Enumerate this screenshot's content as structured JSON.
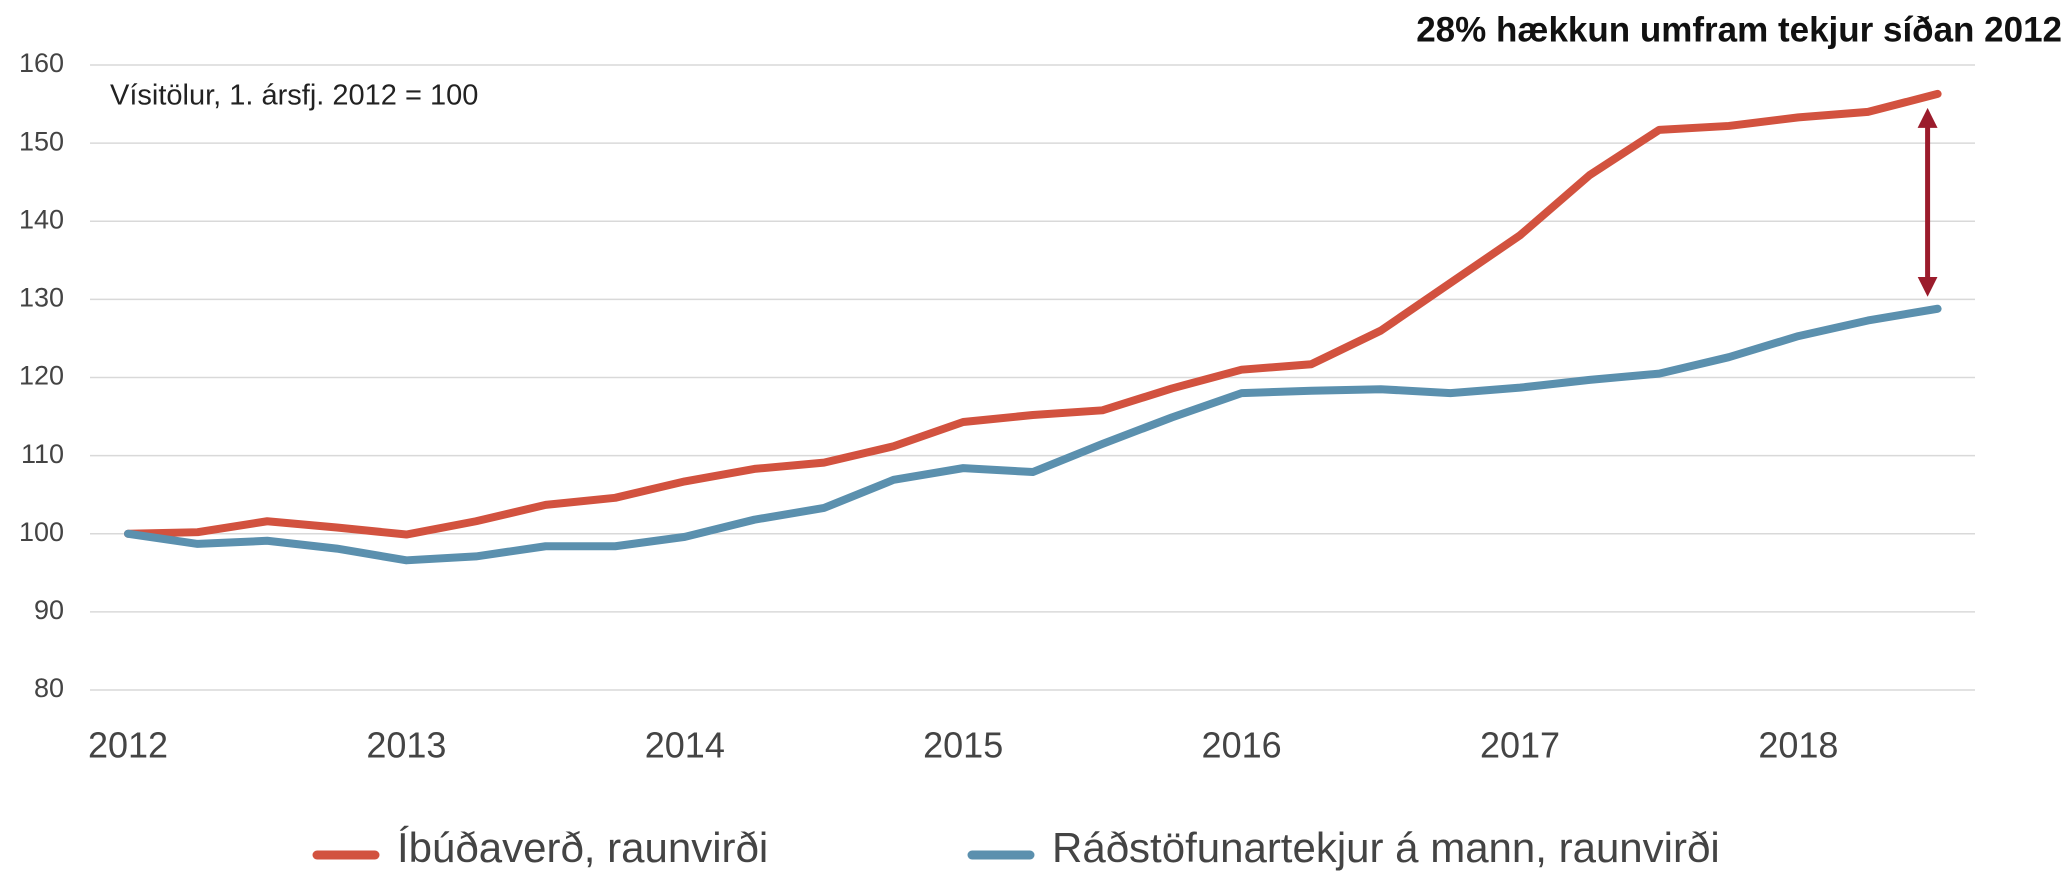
{
  "chart_data": {
    "type": "line",
    "title": "28% hækkun umfram tekjur síðan 2012",
    "annotation": "Vísitölur, 1. ársfj. 2012 = 100",
    "categories": [
      "2012",
      null,
      null,
      null,
      "2013",
      null,
      null,
      null,
      "2014",
      null,
      null,
      null,
      "2015",
      null,
      null,
      null,
      "2016",
      null,
      null,
      null,
      "2017",
      null,
      null,
      null,
      "2018",
      null,
      null
    ],
    "series": [
      {
        "name": "Íbúðaverð, raunvirði",
        "color": "#d2523f",
        "values": [
          100,
          100.2,
          101.6,
          100.8,
          99.9,
          101.6,
          103.7,
          104.6,
          106.7,
          108.3,
          109.1,
          111.2,
          114.3,
          115.2,
          115.8,
          118.6,
          121,
          121.7,
          126,
          132.1,
          138.2,
          145.9,
          151.7,
          152.2,
          153.3,
          154,
          156.3
        ]
      },
      {
        "name": "Ráðstöfunartekjur á mann, raunvirði",
        "color": "#5b90ae",
        "values": [
          100,
          98.7,
          99.1,
          98.1,
          96.6,
          97.1,
          98.4,
          98.4,
          99.6,
          101.8,
          103.3,
          106.9,
          108.4,
          107.9,
          111.5,
          114.9,
          118,
          118.3,
          118.5,
          118,
          118.7,
          119.7,
          120.5,
          122.6,
          125.3,
          127.3,
          128.8
        ]
      }
    ],
    "ylim": [
      80,
      160
    ],
    "yticks": [
      80,
      90,
      100,
      110,
      120,
      130,
      140,
      150,
      160
    ],
    "grid": true,
    "legend": "bottom"
  }
}
